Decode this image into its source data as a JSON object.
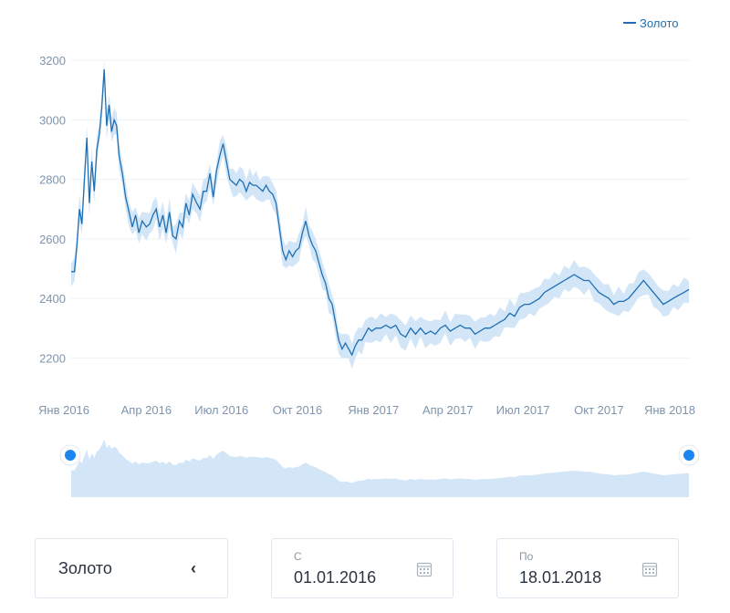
{
  "chart_data": {
    "type": "line",
    "series": [
      {
        "name": "Золото",
        "color": "#1f6fb2",
        "band_color": "#d3e6f8",
        "points": [
          [
            "2016-01-01",
            2490
          ],
          [
            "2016-01-05",
            2490
          ],
          [
            "2016-01-08",
            2580
          ],
          [
            "2016-01-11",
            2700
          ],
          [
            "2016-01-14",
            2650
          ],
          [
            "2016-01-17",
            2800
          ],
          [
            "2016-01-20",
            2940
          ],
          [
            "2016-01-23",
            2720
          ],
          [
            "2016-01-26",
            2860
          ],
          [
            "2016-01-29",
            2760
          ],
          [
            "2016-02-01",
            2900
          ],
          [
            "2016-02-04",
            2950
          ],
          [
            "2016-02-07",
            3040
          ],
          [
            "2016-02-10",
            3170
          ],
          [
            "2016-02-13",
            2980
          ],
          [
            "2016-02-16",
            3050
          ],
          [
            "2016-02-19",
            2960
          ],
          [
            "2016-02-22",
            3000
          ],
          [
            "2016-02-25",
            2980
          ],
          [
            "2016-02-28",
            2880
          ],
          [
            "2016-03-03",
            2820
          ],
          [
            "2016-03-07",
            2740
          ],
          [
            "2016-03-11",
            2690
          ],
          [
            "2016-03-15",
            2640
          ],
          [
            "2016-03-19",
            2680
          ],
          [
            "2016-03-23",
            2620
          ],
          [
            "2016-03-27",
            2660
          ],
          [
            "2016-04-01",
            2640
          ],
          [
            "2016-04-05",
            2650
          ],
          [
            "2016-04-09",
            2680
          ],
          [
            "2016-04-13",
            2700
          ],
          [
            "2016-04-17",
            2640
          ],
          [
            "2016-04-21",
            2680
          ],
          [
            "2016-04-25",
            2620
          ],
          [
            "2016-04-29",
            2690
          ],
          [
            "2016-05-03",
            2610
          ],
          [
            "2016-05-07",
            2600
          ],
          [
            "2016-05-11",
            2660
          ],
          [
            "2016-05-15",
            2640
          ],
          [
            "2016-05-19",
            2720
          ],
          [
            "2016-05-23",
            2680
          ],
          [
            "2016-05-27",
            2750
          ],
          [
            "2016-06-01",
            2720
          ],
          [
            "2016-06-05",
            2700
          ],
          [
            "2016-06-09",
            2760
          ],
          [
            "2016-06-13",
            2760
          ],
          [
            "2016-06-17",
            2820
          ],
          [
            "2016-06-21",
            2740
          ],
          [
            "2016-06-25",
            2830
          ],
          [
            "2016-06-29",
            2880
          ],
          [
            "2016-07-03",
            2920
          ],
          [
            "2016-07-07",
            2860
          ],
          [
            "2016-07-11",
            2800
          ],
          [
            "2016-07-15",
            2790
          ],
          [
            "2016-07-19",
            2780
          ],
          [
            "2016-07-23",
            2800
          ],
          [
            "2016-07-27",
            2790
          ],
          [
            "2016-07-31",
            2760
          ],
          [
            "2016-08-04",
            2790
          ],
          [
            "2016-08-08",
            2780
          ],
          [
            "2016-08-12",
            2780
          ],
          [
            "2016-08-16",
            2770
          ],
          [
            "2016-08-20",
            2760
          ],
          [
            "2016-08-24",
            2780
          ],
          [
            "2016-08-28",
            2760
          ],
          [
            "2016-09-01",
            2750
          ],
          [
            "2016-09-05",
            2720
          ],
          [
            "2016-09-09",
            2640
          ],
          [
            "2016-09-13",
            2560
          ],
          [
            "2016-09-17",
            2530
          ],
          [
            "2016-09-21",
            2560
          ],
          [
            "2016-09-25",
            2540
          ],
          [
            "2016-09-29",
            2560
          ],
          [
            "2016-10-03",
            2570
          ],
          [
            "2016-10-07",
            2620
          ],
          [
            "2016-10-11",
            2660
          ],
          [
            "2016-10-15",
            2610
          ],
          [
            "2016-10-19",
            2580
          ],
          [
            "2016-10-23",
            2560
          ],
          [
            "2016-10-27",
            2520
          ],
          [
            "2016-10-31",
            2480
          ],
          [
            "2016-11-04",
            2450
          ],
          [
            "2016-11-08",
            2400
          ],
          [
            "2016-11-12",
            2380
          ],
          [
            "2016-11-16",
            2320
          ],
          [
            "2016-11-20",
            2260
          ],
          [
            "2016-11-24",
            2230
          ],
          [
            "2016-11-28",
            2250
          ],
          [
            "2016-12-02",
            2230
          ],
          [
            "2016-12-06",
            2210
          ],
          [
            "2016-12-10",
            2240
          ],
          [
            "2016-12-14",
            2260
          ],
          [
            "2016-12-18",
            2260
          ],
          [
            "2016-12-22",
            2280
          ],
          [
            "2016-12-26",
            2300
          ],
          [
            "2016-12-30",
            2290
          ],
          [
            "2017-01-04",
            2300
          ],
          [
            "2017-01-10",
            2300
          ],
          [
            "2017-01-16",
            2310
          ],
          [
            "2017-01-22",
            2300
          ],
          [
            "2017-01-28",
            2310
          ],
          [
            "2017-02-03",
            2280
          ],
          [
            "2017-02-09",
            2270
          ],
          [
            "2017-02-15",
            2300
          ],
          [
            "2017-02-21",
            2280
          ],
          [
            "2017-02-27",
            2300
          ],
          [
            "2017-03-05",
            2280
          ],
          [
            "2017-03-11",
            2290
          ],
          [
            "2017-03-17",
            2280
          ],
          [
            "2017-03-23",
            2300
          ],
          [
            "2017-03-29",
            2310
          ],
          [
            "2017-04-04",
            2290
          ],
          [
            "2017-04-10",
            2300
          ],
          [
            "2017-04-16",
            2310
          ],
          [
            "2017-04-22",
            2300
          ],
          [
            "2017-04-28",
            2300
          ],
          [
            "2017-05-04",
            2280
          ],
          [
            "2017-05-10",
            2290
          ],
          [
            "2017-05-16",
            2300
          ],
          [
            "2017-05-22",
            2300
          ],
          [
            "2017-05-28",
            2310
          ],
          [
            "2017-06-03",
            2320
          ],
          [
            "2017-06-09",
            2330
          ],
          [
            "2017-06-15",
            2350
          ],
          [
            "2017-06-21",
            2340
          ],
          [
            "2017-06-27",
            2370
          ],
          [
            "2017-07-03",
            2380
          ],
          [
            "2017-07-09",
            2380
          ],
          [
            "2017-07-15",
            2390
          ],
          [
            "2017-07-21",
            2400
          ],
          [
            "2017-07-27",
            2420
          ],
          [
            "2017-08-02",
            2430
          ],
          [
            "2017-08-08",
            2440
          ],
          [
            "2017-08-14",
            2450
          ],
          [
            "2017-08-20",
            2460
          ],
          [
            "2017-08-26",
            2470
          ],
          [
            "2017-09-01",
            2480
          ],
          [
            "2017-09-07",
            2470
          ],
          [
            "2017-09-13",
            2460
          ],
          [
            "2017-09-19",
            2460
          ],
          [
            "2017-09-25",
            2440
          ],
          [
            "2017-10-01",
            2420
          ],
          [
            "2017-10-07",
            2410
          ],
          [
            "2017-10-13",
            2400
          ],
          [
            "2017-10-19",
            2380
          ],
          [
            "2017-10-25",
            2390
          ],
          [
            "2017-10-31",
            2390
          ],
          [
            "2017-11-06",
            2400
          ],
          [
            "2017-11-12",
            2420
          ],
          [
            "2017-11-18",
            2440
          ],
          [
            "2017-11-24",
            2460
          ],
          [
            "2017-11-30",
            2440
          ],
          [
            "2017-12-06",
            2420
          ],
          [
            "2017-12-12",
            2400
          ],
          [
            "2017-12-18",
            2380
          ],
          [
            "2017-12-24",
            2390
          ],
          [
            "2017-12-30",
            2400
          ],
          [
            "2018-01-05",
            2410
          ],
          [
            "2018-01-12",
            2420
          ],
          [
            "2018-01-18",
            2430
          ]
        ]
      }
    ],
    "y_ticks": [
      2200,
      2400,
      2600,
      2800,
      3000,
      3200
    ],
    "ylim": [
      2100,
      3280
    ],
    "x_ticks": [
      {
        "date": "2016-01-01",
        "label": "Янв 2016"
      },
      {
        "date": "2016-04-01",
        "label": "Апр 2016"
      },
      {
        "date": "2016-07-01",
        "label": "Июл 2016"
      },
      {
        "date": "2016-10-01",
        "label": "Окт 2016"
      },
      {
        "date": "2017-01-01",
        "label": "Янв 2017"
      },
      {
        "date": "2017-04-01",
        "label": "Апр 2017"
      },
      {
        "date": "2017-07-01",
        "label": "Июл 2017"
      },
      {
        "date": "2017-10-01",
        "label": "Окт 2017"
      },
      {
        "date": "2018-01-01",
        "label": "Янв 2018"
      }
    ],
    "xlim": [
      "2016-01-01",
      "2018-01-18"
    ],
    "legend": {
      "position": "top-right",
      "label": "Золото"
    },
    "grid": true,
    "navigator": true
  },
  "controls": {
    "asset_label": "Золото",
    "asset_chevron": "‹",
    "from_caption": "С",
    "from_value": "01.01.2016",
    "to_caption": "По",
    "to_value": "18.01.2018"
  },
  "icons": {
    "from_icon": "calendar-icon",
    "to_icon": "calendar-icon"
  }
}
